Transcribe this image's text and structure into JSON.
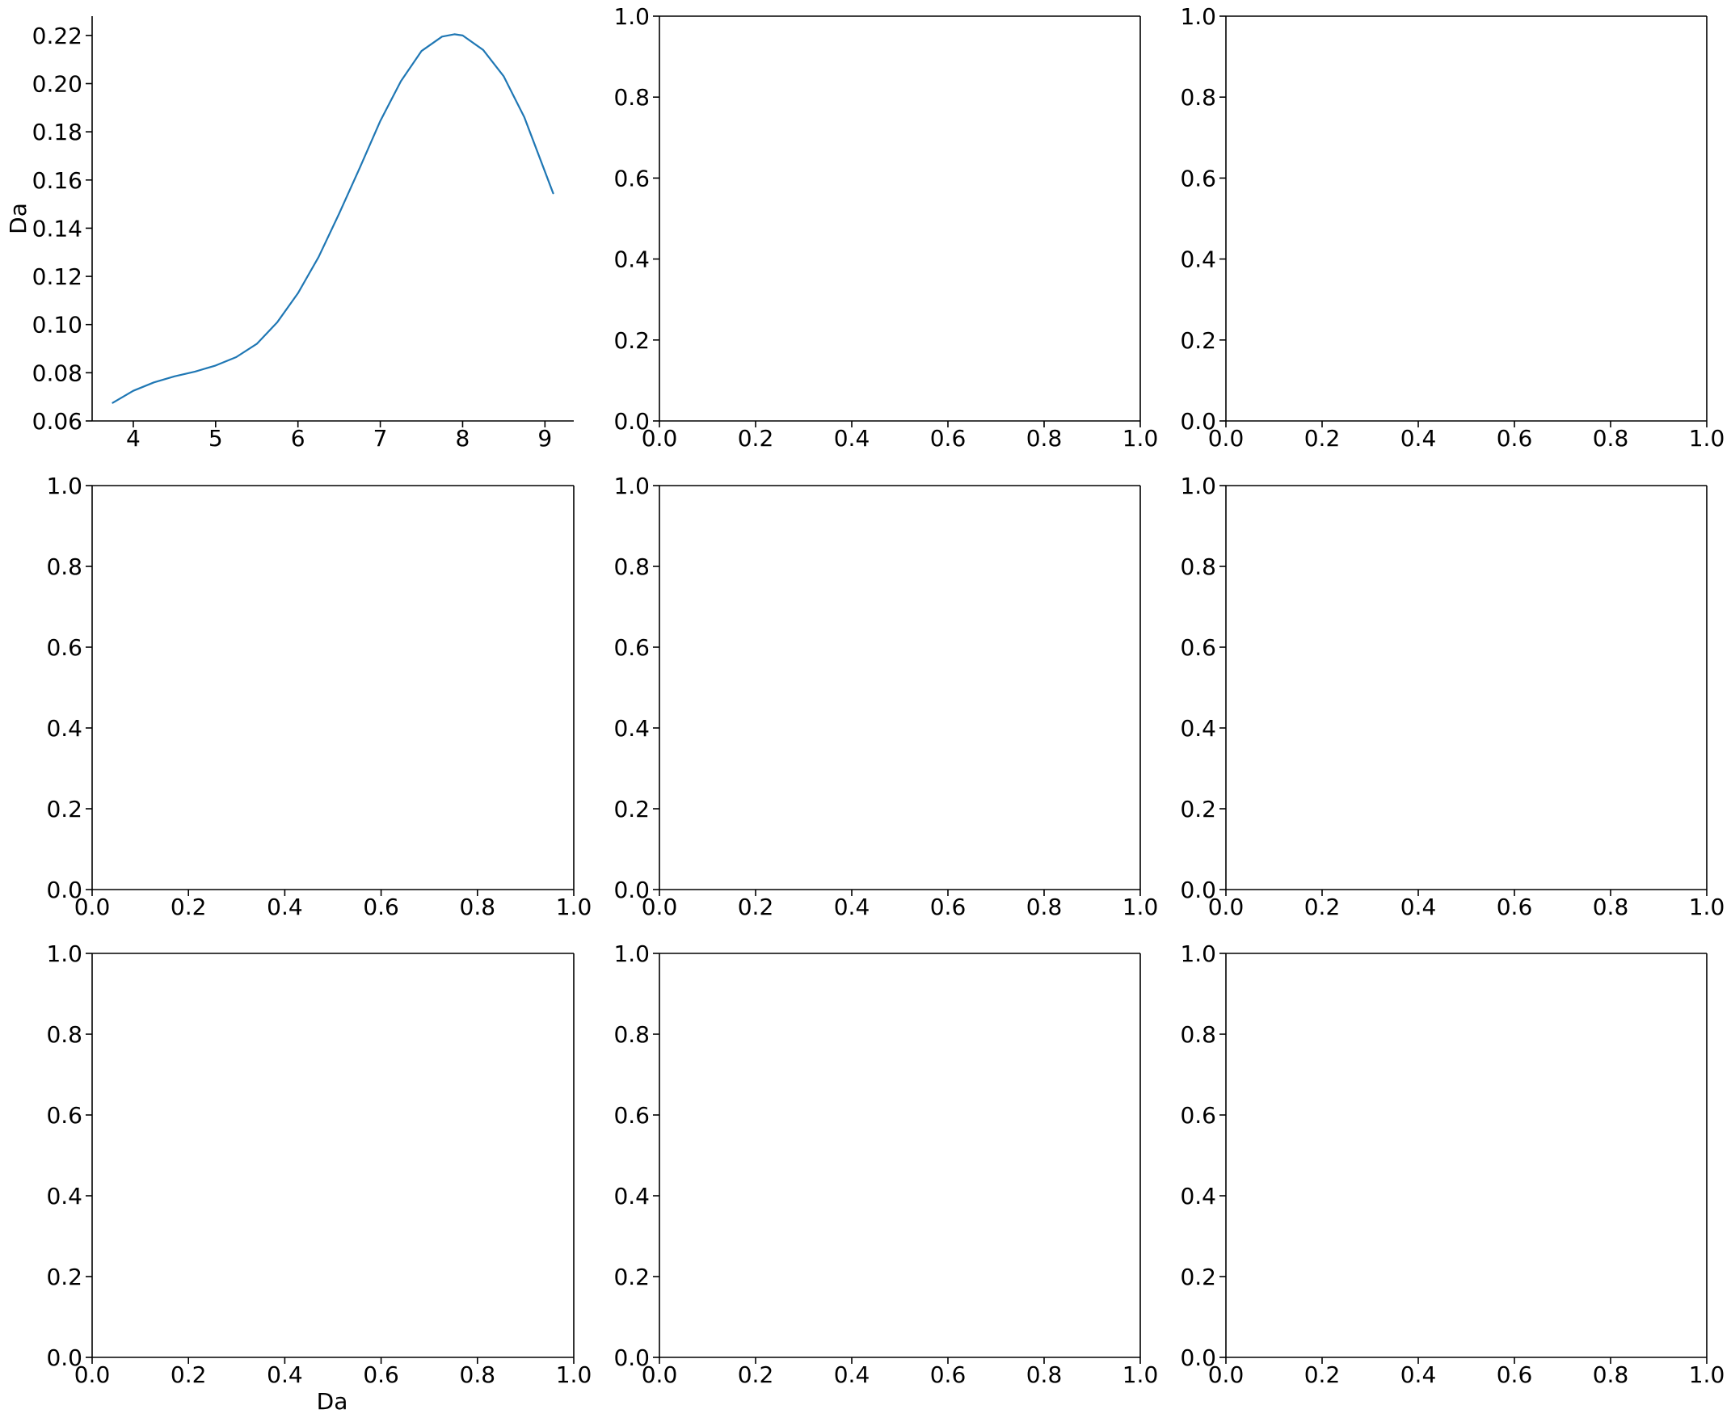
{
  "figure": {
    "line_color": "#1f77b4",
    "axis_color": "#000000"
  },
  "chart_data": [
    {
      "type": "line",
      "ylabel": "Da",
      "xlim": [
        3.5,
        9.35
      ],
      "ylim": [
        0.06,
        0.228
      ],
      "xticks": [
        4,
        5,
        6,
        7,
        8,
        9
      ],
      "yticks": [
        0.06,
        0.08,
        0.1,
        0.12,
        0.14,
        0.16,
        0.18,
        0.2,
        0.22
      ],
      "ytick_labels": [
        "0.06",
        "0.08",
        "0.10",
        "0.12",
        "0.14",
        "0.16",
        "0.18",
        "0.20",
        "0.22"
      ],
      "spines": "left-bottom",
      "series": [
        {
          "x": [
            3.75,
            4.0,
            4.25,
            4.5,
            4.75,
            5.0,
            5.25,
            5.5,
            5.75,
            6.0,
            6.25,
            6.5,
            6.75,
            7.0,
            7.25,
            7.5,
            7.75,
            7.9,
            8.0,
            8.25,
            8.5,
            8.75,
            9.1
          ],
          "y": [
            0.0675,
            0.0725,
            0.076,
            0.0785,
            0.0805,
            0.083,
            0.0865,
            0.092,
            0.101,
            0.113,
            0.128,
            0.146,
            0.165,
            0.1845,
            0.201,
            0.2135,
            0.2195,
            0.2205,
            0.22,
            0.214,
            0.203,
            0.186,
            0.1545
          ]
        }
      ]
    },
    {
      "type": "line",
      "xlim": [
        0,
        1
      ],
      "ylim": [
        0,
        1
      ],
      "series": []
    },
    {
      "type": "line",
      "xlim": [
        0,
        1
      ],
      "ylim": [
        0,
        1
      ],
      "series": []
    },
    {
      "type": "line",
      "xlim": [
        0,
        1
      ],
      "ylim": [
        0,
        1
      ],
      "series": []
    },
    {
      "type": "line",
      "xlim": [
        0,
        1
      ],
      "ylim": [
        0,
        1
      ],
      "series": []
    },
    {
      "type": "line",
      "xlim": [
        0,
        1
      ],
      "ylim": [
        0,
        1
      ],
      "series": []
    },
    {
      "type": "line",
      "xlabel": "Da",
      "xlim": [
        0,
        1
      ],
      "ylim": [
        0,
        1
      ],
      "series": []
    },
    {
      "type": "line",
      "xlim": [
        0,
        1
      ],
      "ylim": [
        0,
        1
      ],
      "series": []
    },
    {
      "type": "line",
      "xlim": [
        0,
        1
      ],
      "ylim": [
        0,
        1
      ],
      "series": []
    }
  ],
  "empty_axes_ticks": {
    "values": [
      0,
      0.2,
      0.4,
      0.6,
      0.8,
      1.0
    ],
    "labels": [
      "0.0",
      "0.2",
      "0.4",
      "0.6",
      "0.8",
      "1.0"
    ]
  }
}
